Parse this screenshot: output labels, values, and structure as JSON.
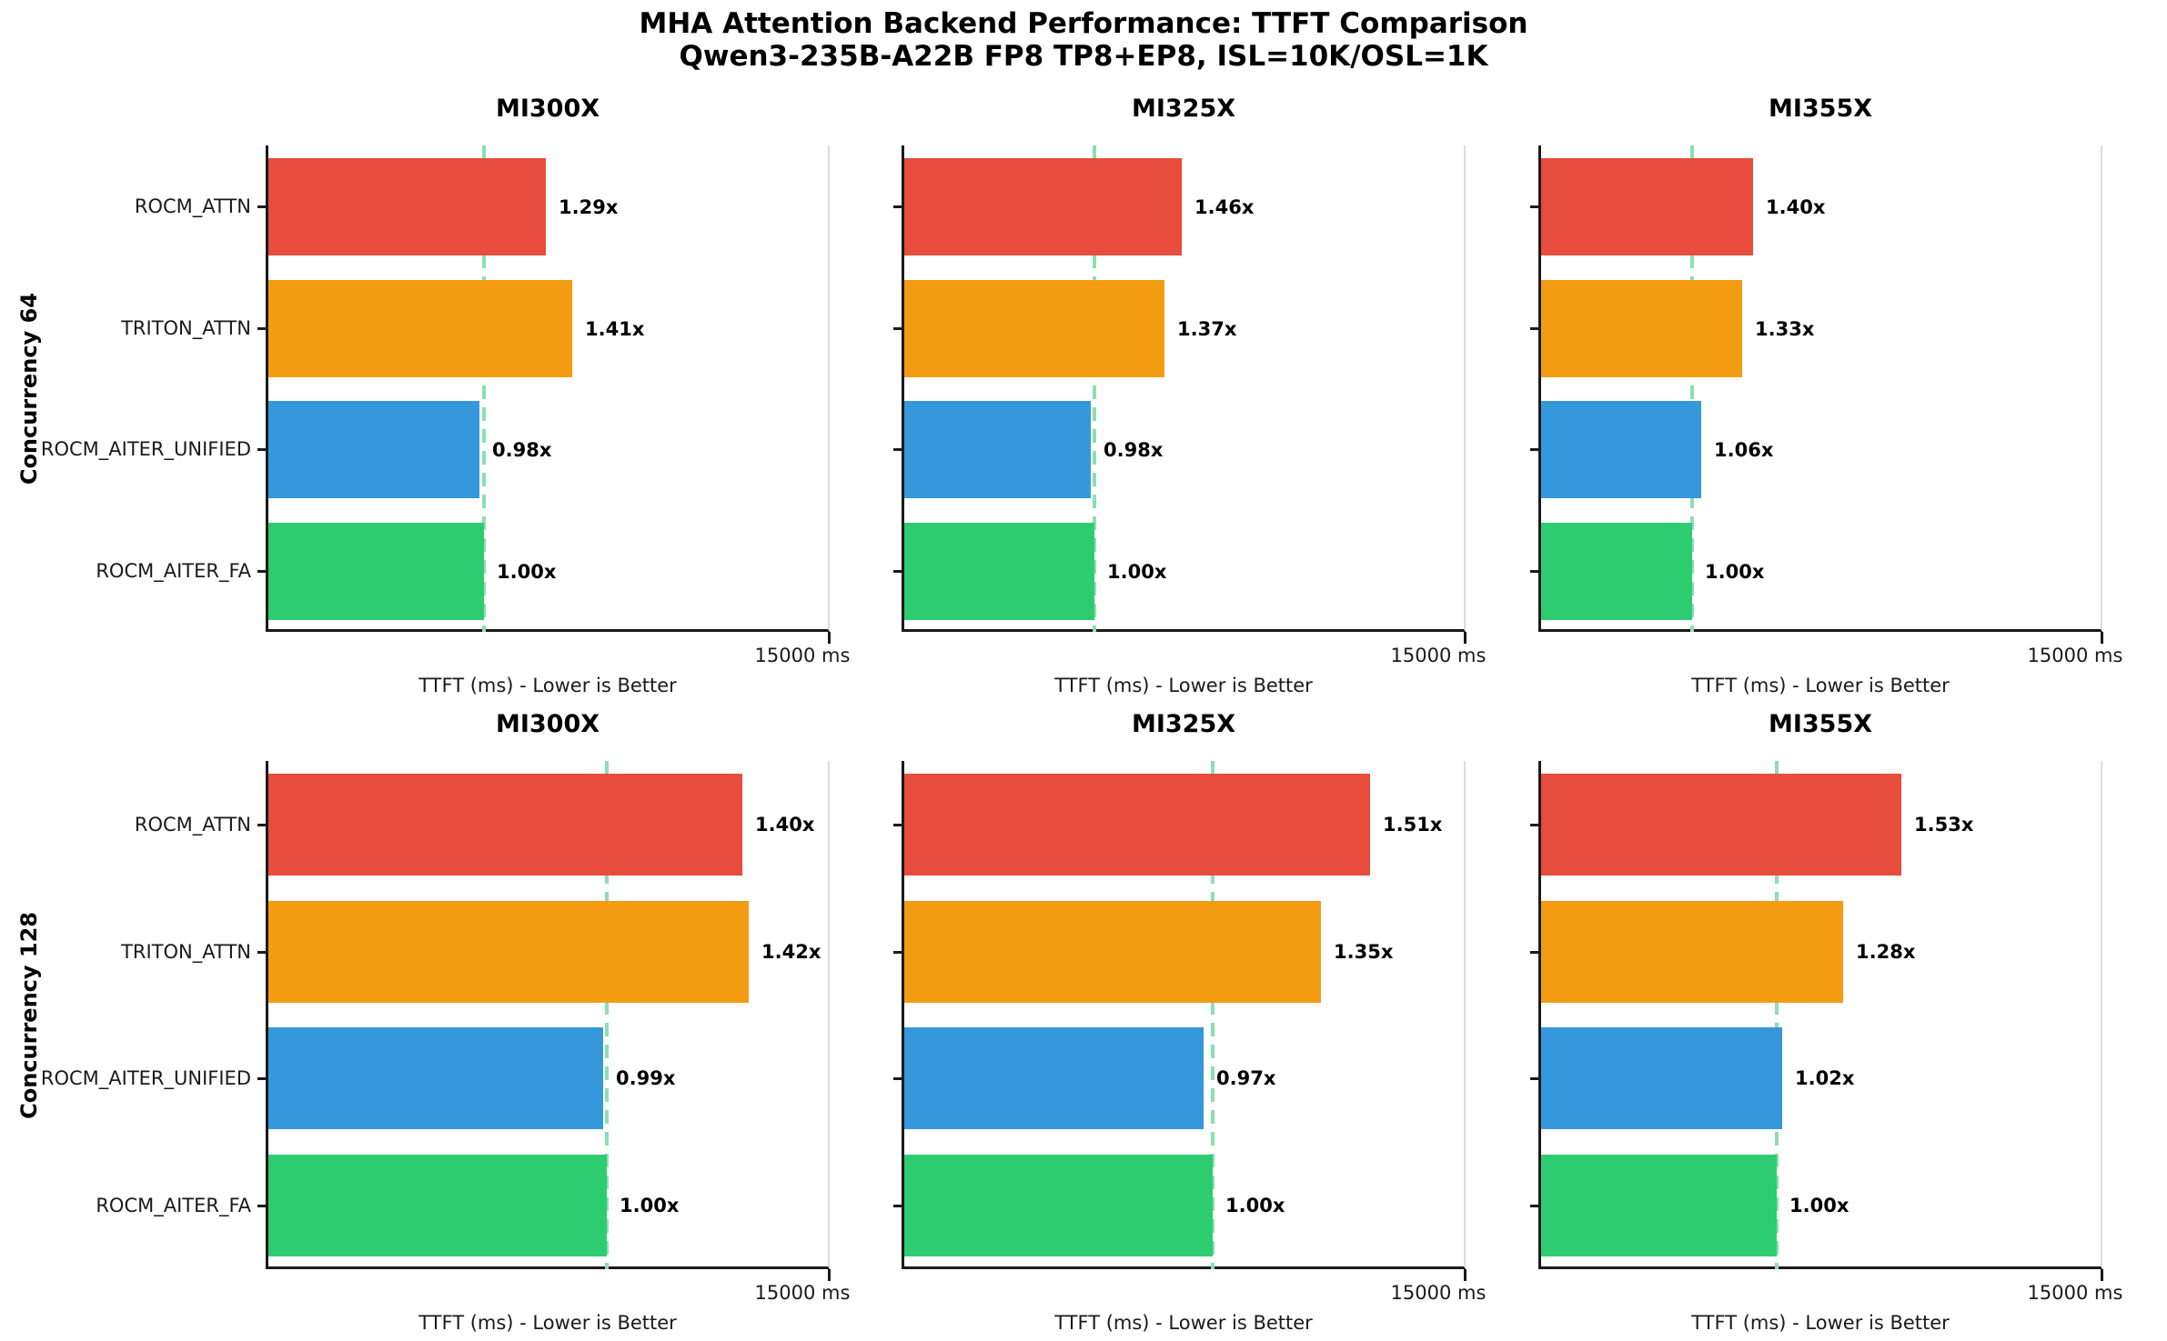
{
  "figure": {
    "background": "#ffffff",
    "text_color": "#000000",
    "spine_color": "#1a1a1a"
  },
  "chart_data": {
    "type": "bar",
    "orientation": "horizontal",
    "title": "MHA Attention Backend Performance: TTFT Comparison",
    "subtitle": "Qwen3-235B-A22B FP8 TP8+EP8, ISL=10K/OSL=1K",
    "grid": "off",
    "legend": "none",
    "categories": [
      "ROCM_ATTN",
      "TRITON_ATTN",
      "ROCM_AITER_UNIFIED",
      "ROCM_AITER_FA"
    ],
    "bar_colors": [
      "#e74c3c",
      "#f39c12",
      "#3498db",
      "#2ecc71"
    ],
    "baseline_line": {
      "style": "dashed",
      "color": "#8be0af",
      "meaning": "ROCM_AITER_FA baseline (1.00x)"
    },
    "xlabel": "TTFT (ms) - Lower is Better",
    "x_tick_label": "15000 ms",
    "xlim": [
      0,
      15000
    ],
    "rows": [
      {
        "row_label": "Concurrency 64",
        "subplots": [
          {
            "title": "MI300X",
            "labels": [
              "1.29x",
              "1.41x",
              "0.98x",
              "1.00x"
            ],
            "speedup_vs_baseline": [
              1.29,
              1.41,
              0.98,
              1.0
            ],
            "values_ms": [
              7390,
              8080,
              5610,
              5730
            ],
            "baseline_ms": 5730
          },
          {
            "title": "MI325X",
            "labels": [
              "1.46x",
              "1.37x",
              "0.98x",
              "1.00x"
            ],
            "speedup_vs_baseline": [
              1.46,
              1.37,
              0.98,
              1.0
            ],
            "values_ms": [
              7390,
              6930,
              4960,
              5060
            ],
            "baseline_ms": 5060
          },
          {
            "title": "MI355X",
            "labels": [
              "1.40x",
              "1.33x",
              "1.06x",
              "1.00x"
            ],
            "speedup_vs_baseline": [
              1.4,
              1.33,
              1.06,
              1.0
            ],
            "values_ms": [
              5630,
              5350,
              4260,
              4020
            ],
            "baseline_ms": 4020
          }
        ]
      },
      {
        "row_label": "Concurrency 128",
        "subplots": [
          {
            "title": "MI300X",
            "labels": [
              "1.40x",
              "1.42x",
              "0.99x",
              "1.00x"
            ],
            "speedup_vs_baseline": [
              1.4,
              1.42,
              0.99,
              1.0
            ],
            "values_ms": [
              12600,
              12780,
              8910,
              9000
            ],
            "baseline_ms": 9000
          },
          {
            "title": "MI325X",
            "labels": [
              "1.51x",
              "1.35x",
              "0.97x",
              "1.00x"
            ],
            "speedup_vs_baseline": [
              1.51,
              1.35,
              0.97,
              1.0
            ],
            "values_ms": [
              12380,
              11070,
              7960,
              8200
            ],
            "baseline_ms": 8200
          },
          {
            "title": "MI355X",
            "labels": [
              "1.53x",
              "1.28x",
              "1.02x",
              "1.00x"
            ],
            "speedup_vs_baseline": [
              1.53,
              1.28,
              1.02,
              1.0
            ],
            "values_ms": [
              9590,
              8030,
              6400,
              6270
            ],
            "baseline_ms": 6270
          }
        ]
      }
    ]
  }
}
